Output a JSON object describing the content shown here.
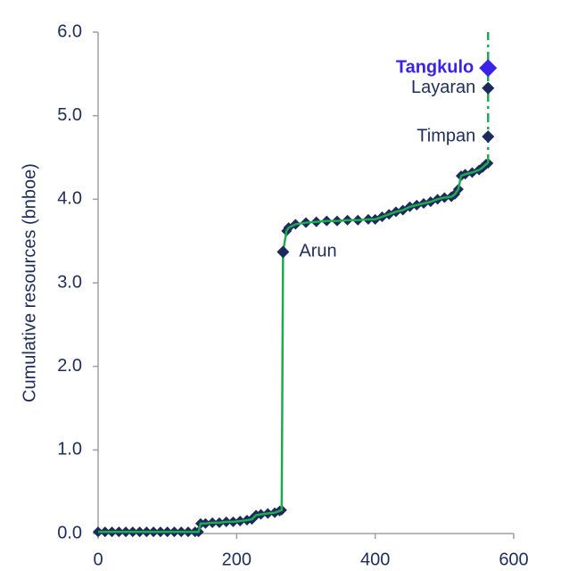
{
  "chart_data": {
    "type": "line",
    "ylabel": "Cumulative resources (bnboe)",
    "x": [
      0,
      10,
      20,
      30,
      40,
      50,
      60,
      70,
      80,
      90,
      100,
      110,
      120,
      130,
      140,
      145,
      148,
      155,
      165,
      175,
      185,
      195,
      205,
      215,
      222,
      228,
      235,
      245,
      255,
      262,
      265,
      267,
      272,
      275,
      285,
      300,
      315,
      330,
      345,
      360,
      375,
      390,
      400,
      410,
      420,
      430,
      440,
      450,
      460,
      470,
      480,
      490,
      500,
      510,
      515,
      520,
      524,
      530,
      540,
      550,
      555,
      560,
      563
    ],
    "values": [
      0.02,
      0.02,
      0.02,
      0.02,
      0.02,
      0.02,
      0.02,
      0.02,
      0.02,
      0.02,
      0.02,
      0.02,
      0.02,
      0.02,
      0.02,
      0.02,
      0.12,
      0.12,
      0.13,
      0.13,
      0.14,
      0.14,
      0.15,
      0.16,
      0.17,
      0.22,
      0.23,
      0.24,
      0.25,
      0.27,
      0.28,
      3.37,
      3.62,
      3.66,
      3.7,
      3.72,
      3.73,
      3.74,
      3.74,
      3.75,
      3.75,
      3.76,
      3.76,
      3.79,
      3.82,
      3.85,
      3.87,
      3.91,
      3.93,
      3.95,
      3.97,
      4.0,
      4.02,
      4.03,
      4.06,
      4.12,
      4.28,
      4.3,
      4.32,
      4.35,
      4.38,
      4.42,
      4.43
    ],
    "line_color": "#1faa4e",
    "marker_color": "#1b2a5c",
    "projection": {
      "x": [
        563,
        563
      ],
      "values": [
        4.43,
        6.0
      ]
    },
    "annotations": [
      {
        "label": "Arun",
        "x": 267,
        "y": 3.37,
        "color": "#1b2a5c"
      },
      {
        "label": "Timpan",
        "x": 563,
        "y": 4.75,
        "color": "#1b2a5c"
      },
      {
        "label": "Layaran",
        "x": 563,
        "y": 5.33,
        "color": "#1b2a5c"
      },
      {
        "label": "Tangkulo",
        "x": 563,
        "y": 5.57,
        "color": "#3a22e8"
      }
    ],
    "xlim": [
      0,
      600
    ],
    "xticks": [
      0,
      200,
      400,
      600
    ],
    "ylim": [
      0,
      6
    ],
    "yticks": [
      {
        "value": 0,
        "label": "0.0"
      },
      {
        "value": 1,
        "label": "1.0"
      },
      {
        "value": 2,
        "label": "2.0"
      },
      {
        "value": 3,
        "label": "3.0"
      },
      {
        "value": 4,
        "label": "4.0"
      },
      {
        "value": 5,
        "label": "5.0"
      },
      {
        "value": 6,
        "label": "6.0"
      }
    ]
  }
}
